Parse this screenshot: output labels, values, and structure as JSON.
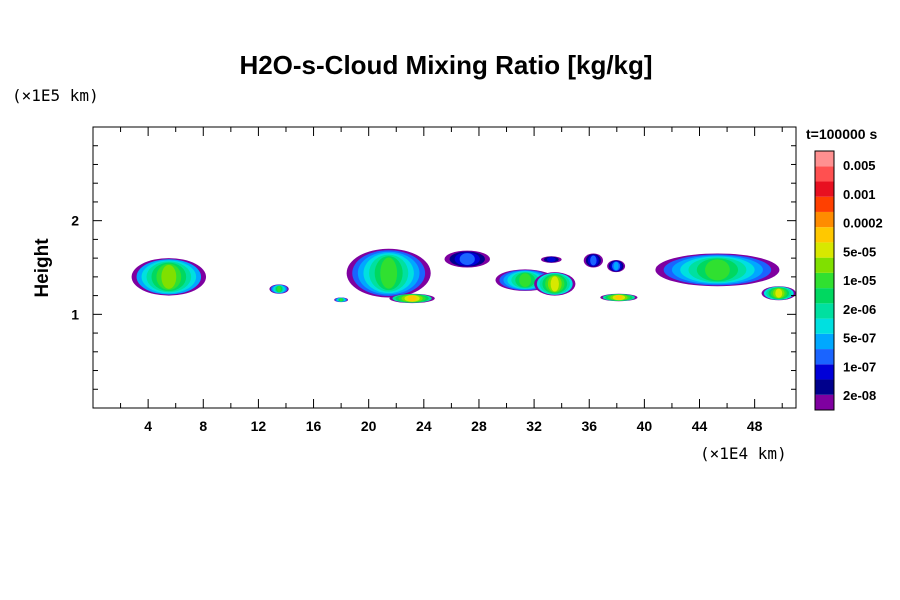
{
  "chart_data": {
    "type": "heatmap",
    "title": "H2O-s-Cloud Mixing Ratio [kg/kg]",
    "ylabel": "Height",
    "xlabel": "",
    "x_unit": "(×1E4 km)",
    "y_unit": "(×1E5 km)",
    "time_label": "t=100000 s",
    "xlim": [
      0,
      51
    ],
    "ylim": [
      0,
      3
    ],
    "x_ticks": [
      4,
      8,
      12,
      16,
      20,
      24,
      28,
      32,
      36,
      40,
      44,
      48
    ],
    "y_ticks": [
      1,
      2
    ],
    "colorbar": {
      "labels": [
        "0.005",
        "0.001",
        "0.0002",
        "5e-05",
        "1e-05",
        "2e-06",
        "5e-07",
        "1e-07",
        "2e-08"
      ],
      "colors": [
        "#7f00a0",
        "#00008c",
        "#0000d8",
        "#1a64ff",
        "#00a8ff",
        "#00e0e0",
        "#00e0a0",
        "#00d860",
        "#30e030",
        "#80e000",
        "#d8e800",
        "#ffc800",
        "#ff8c00",
        "#ff4000",
        "#e81020",
        "#ff5050",
        "#ff9090"
      ]
    },
    "clouds": [
      {
        "x": [
          2.8,
          8.2
        ],
        "y": [
          1.2,
          1.6
        ],
        "level": 9
      },
      {
        "x": [
          12.8,
          14.2
        ],
        "y": [
          1.22,
          1.32
        ],
        "level": 8
      },
      {
        "x": [
          17.5,
          18.5
        ],
        "y": [
          1.13,
          1.18
        ],
        "level": 8
      },
      {
        "x": [
          18.4,
          24.5
        ],
        "y": [
          1.18,
          1.7
        ],
        "level": 8
      },
      {
        "x": [
          21.5,
          24.8
        ],
        "y": [
          1.12,
          1.22
        ],
        "level": 11
      },
      {
        "x": [
          25.5,
          28.8
        ],
        "y": [
          1.5,
          1.68
        ],
        "level": 3
      },
      {
        "x": [
          29.2,
          33.5
        ],
        "y": [
          1.25,
          1.48
        ],
        "level": 8
      },
      {
        "x": [
          32,
          35
        ],
        "y": [
          1.2,
          1.45
        ],
        "level": 10
      },
      {
        "x": [
          32.5,
          34
        ],
        "y": [
          1.55,
          1.62
        ],
        "level": 2
      },
      {
        "x": [
          35.6,
          37
        ],
        "y": [
          1.5,
          1.65
        ],
        "level": 3
      },
      {
        "x": [
          36.8,
          39.5
        ],
        "y": [
          1.14,
          1.22
        ],
        "level": 11
      },
      {
        "x": [
          37.3,
          38.6
        ],
        "y": [
          1.45,
          1.58
        ],
        "level": 4
      },
      {
        "x": [
          40.8,
          49.8
        ],
        "y": [
          1.3,
          1.65
        ],
        "level": 8
      },
      {
        "x": [
          48.5,
          51
        ],
        "y": [
          1.15,
          1.3
        ],
        "level": 10
      }
    ]
  }
}
